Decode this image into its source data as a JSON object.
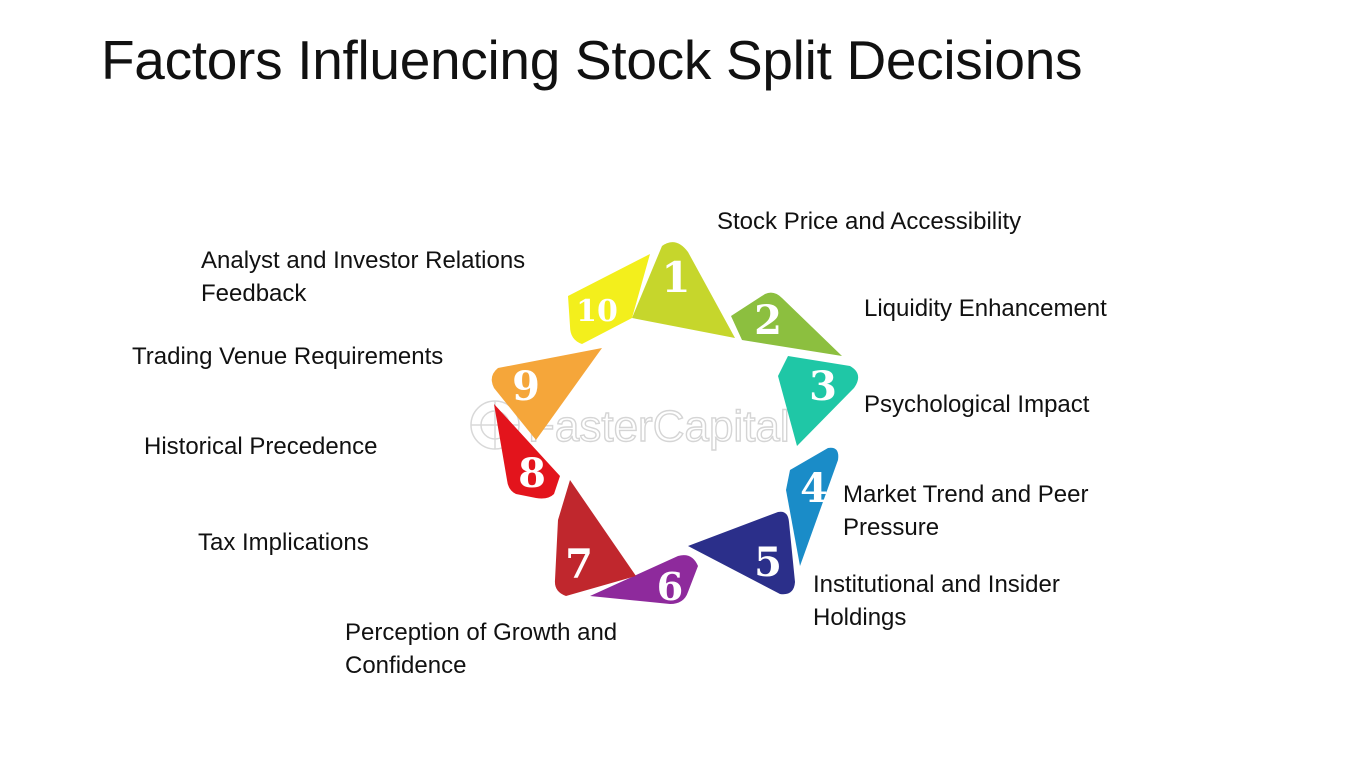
{
  "title": "Factors Influencing Stock Split Decisions",
  "watermark": "FasterCapital",
  "segments": [
    {
      "number": "1",
      "label": [
        "Stock Price and Accessibility"
      ],
      "color": "#c6d62c"
    },
    {
      "number": "2",
      "label": [
        "Liquidity Enhancement"
      ],
      "color": "#8cbf3f"
    },
    {
      "number": "3",
      "label": [
        "Psychological Impact"
      ],
      "color": "#1fc7a6"
    },
    {
      "number": "4",
      "label": [
        "Market Trend and Peer",
        "Pressure"
      ],
      "color": "#1a8cc8"
    },
    {
      "number": "5",
      "label": [
        "Institutional and Insider",
        "Holdings"
      ],
      "color": "#2b2f8a"
    },
    {
      "number": "6",
      "label": [
        "Perception of Growth and",
        "Confidence"
      ],
      "color": "#8e2a9c"
    },
    {
      "number": "7",
      "label": [
        "Tax Implications"
      ],
      "color": "#c0272d"
    },
    {
      "number": "8",
      "label": [
        "Historical Precedence"
      ],
      "color": "#e3141c"
    },
    {
      "number": "9",
      "label": [
        "Trading Venue Requirements"
      ],
      "color": "#f5a63a"
    },
    {
      "number": "10",
      "label": [
        "Analyst and Investor Relations",
        "Feedback"
      ],
      "color": "#f3ef1c"
    }
  ]
}
